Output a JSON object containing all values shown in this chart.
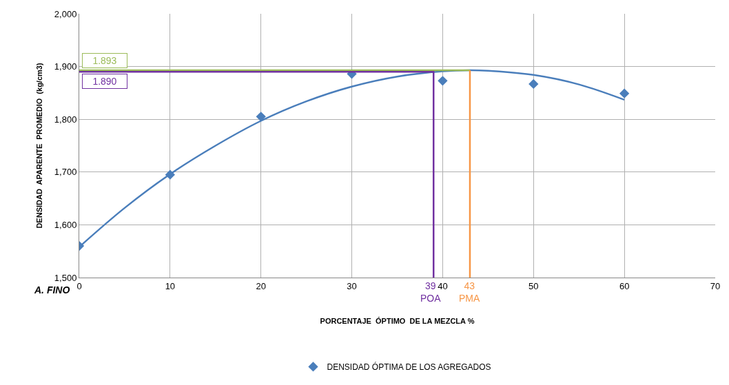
{
  "chart_data": {
    "type": "line",
    "xlabel": "PORCENTAJE  ÓPTIMO  DE LA MEZCLA %",
    "ylabel": "DENSIDAD  APARENTE  PROMEDIO  (kg/cm3)",
    "x": [
      0,
      10,
      20,
      30,
      40,
      50,
      60
    ],
    "series": [
      {
        "name": "DENSIDAD ÓPTIMA DE LOS AGREGADOS",
        "type": "scatter",
        "color": "#4a7ebb",
        "marker": "diamond",
        "values": [
          1560,
          1695,
          1805,
          1886,
          1873,
          1867,
          1849
        ]
      },
      {
        "color": "#4a7ebb",
        "marker": "none",
        "x": [
          0,
          5,
          10,
          15,
          20,
          25,
          30,
          35,
          40,
          43,
          45,
          50,
          55,
          60
        ],
        "values": [
          1558,
          1632,
          1696,
          1750,
          1797,
          1834,
          1862,
          1881,
          1891,
          1893,
          1892,
          1884,
          1866,
          1837
        ]
      },
      {
        "color": "#9bbb59",
        "marker": "none",
        "x": [
          0,
          43
        ],
        "values": [
          1893,
          1893
        ]
      },
      {
        "color": "#f79646",
        "marker": "none",
        "x": [
          43,
          43
        ],
        "values": [
          1893,
          1500
        ]
      },
      {
        "color": "#7030a0",
        "marker": "none",
        "x": [
          0,
          39,
          39
        ],
        "values": [
          1890,
          1890,
          1500
        ]
      }
    ],
    "annotations": [
      {
        "text": "1.893",
        "x": 0,
        "y": 1893
      },
      {
        "text": "1.890",
        "x": 0,
        "y": 1890
      },
      {
        "text": "39\nPOA",
        "x": 39,
        "y": 1500
      },
      {
        "text": "43\nPMA",
        "x": 43,
        "y": 1500
      },
      "A. FINO"
    ],
    "xlim": [
      0,
      70
    ],
    "xticks": [
      0,
      10,
      20,
      30,
      40,
      50,
      60,
      70
    ],
    "ylim": [
      1500,
      2000
    ],
    "yticks": [
      {
        "value": 1500,
        "label": "1,500"
      },
      {
        "value": 1600,
        "label": "1,600"
      },
      {
        "value": 1700,
        "label": "1,700"
      },
      {
        "value": 1800,
        "label": "1,800"
      },
      {
        "value": 1900,
        "label": "1,900"
      },
      {
        "value": 2000,
        "label": "2,000"
      }
    ],
    "grid": true,
    "legend": "bottom"
  }
}
